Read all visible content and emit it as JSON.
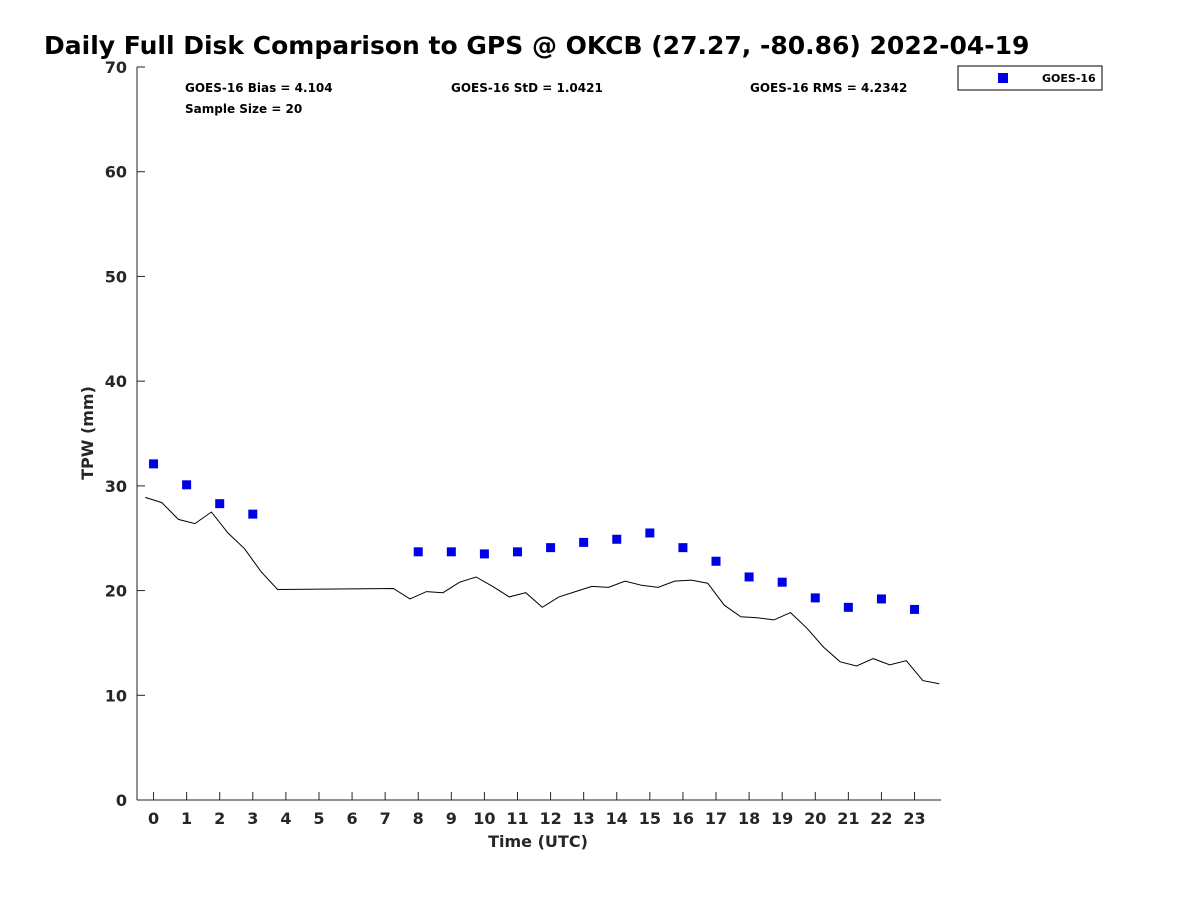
{
  "chart_data": {
    "type": "scatter",
    "title": "Daily Full Disk Comparison to GPS @ OKCB (27.27, -80.86) 2022-04-19",
    "xlabel": "Time (UTC)",
    "ylabel": "TPW (mm)",
    "xlim": [
      -0.5,
      23.8
    ],
    "ylim": [
      0,
      70
    ],
    "xticks": [
      "0",
      "1",
      "2",
      "3",
      "4",
      "5",
      "6",
      "7",
      "8",
      "9",
      "10",
      "11",
      "12",
      "13",
      "14",
      "15",
      "16",
      "17",
      "18",
      "19",
      "20",
      "21",
      "22",
      "23"
    ],
    "yticks": [
      "0",
      "10",
      "20",
      "30",
      "40",
      "50",
      "60",
      "70"
    ],
    "grid": false,
    "legend_position": "top-right, outside plot",
    "stats": {
      "bias": "GOES-16 Bias = 4.104",
      "std": "GOES-16 StD = 1.0421",
      "rms": "GOES-16 RMS = 4.2342",
      "sample": "Sample Size = 20"
    },
    "series": [
      {
        "name": "GOES-16",
        "marker": "square",
        "color": "#0000e6",
        "x": [
          0,
          1,
          2,
          3,
          8,
          9,
          10,
          11,
          12,
          13,
          14,
          15,
          16,
          17,
          18,
          19,
          20,
          21,
          22,
          23
        ],
        "y": [
          32.1,
          30.1,
          28.3,
          27.3,
          23.7,
          23.7,
          23.5,
          23.7,
          24.1,
          24.6,
          24.9,
          25.5,
          24.1,
          22.8,
          21.3,
          20.8,
          19.3,
          18.4,
          19.2,
          18.2
        ]
      },
      {
        "marker": "line",
        "color": "#000000",
        "x": [
          -0.25,
          0.25,
          0.75,
          1.25,
          1.75,
          2.25,
          2.75,
          3.25,
          3.75,
          7.25,
          7.75,
          8.25,
          8.75,
          9.25,
          9.75,
          10.25,
          10.75,
          11.25,
          11.75,
          12.25,
          12.75,
          13.25,
          13.75,
          14.25,
          14.75,
          15.25,
          15.75,
          16.25,
          16.75,
          17.25,
          17.75,
          18.25,
          18.75,
          19.25,
          19.75,
          20.25,
          20.75,
          21.25,
          21.75,
          22.25,
          22.75,
          23.25,
          23.75
        ],
        "y": [
          28.9,
          28.4,
          26.8,
          26.4,
          27.5,
          25.5,
          24.0,
          21.8,
          20.1,
          20.2,
          19.2,
          19.9,
          19.8,
          20.8,
          21.3,
          20.4,
          19.4,
          19.8,
          18.4,
          19.4,
          19.9,
          20.4,
          20.3,
          20.9,
          20.5,
          20.3,
          20.9,
          21.0,
          20.7,
          18.6,
          17.5,
          17.4,
          17.2,
          17.9,
          16.4,
          14.6,
          13.2,
          12.8,
          13.5,
          12.9,
          13.3,
          11.4,
          11.1
        ]
      }
    ]
  }
}
